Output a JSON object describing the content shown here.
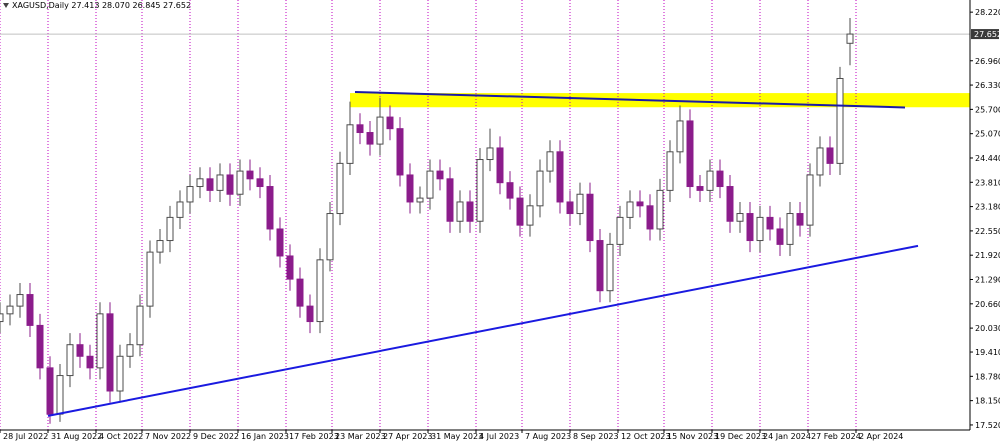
{
  "chart_data": {
    "type": "candlestick",
    "title": "XAGUSD,Daily  27.413 28.070 26.845 27.652",
    "up_color": "#4d4d4d",
    "down_color": "#8b1c8b",
    "grid_color": "#c000c0",
    "xlim": [
      0,
      485
    ],
    "ylim": [
      17.389,
      28.535
    ],
    "xticks": [
      {
        "value": 0,
        "label": "28 Jul 2022"
      },
      {
        "value": 24,
        "label": "31 Aug 2022"
      },
      {
        "value": 48,
        "label": "4 Oct 2022"
      },
      {
        "value": 71,
        "label": "7 Nov 2022"
      },
      {
        "value": 95,
        "label": "9 Dec 2022"
      },
      {
        "value": 119,
        "label": "16 Jan 2023"
      },
      {
        "value": 143,
        "label": "17 Feb 2023"
      },
      {
        "value": 166,
        "label": "23 Mar 2023"
      },
      {
        "value": 190,
        "label": "27 Apr 2023"
      },
      {
        "value": 214,
        "label": "31 May 2023"
      },
      {
        "value": 238,
        "label": "4 Jul 2023"
      },
      {
        "value": 261,
        "label": "7 Aug 2023"
      },
      {
        "value": 285,
        "label": "8 Sep 2023"
      },
      {
        "value": 309,
        "label": "12 Oct 2023"
      },
      {
        "value": 332,
        "label": "15 Nov 2023"
      },
      {
        "value": 356,
        "label": "19 Dec 2023"
      },
      {
        "value": 380,
        "label": "24 Jan 2024"
      },
      {
        "value": 404,
        "label": "27 Feb 2024"
      },
      {
        "value": 428,
        "label": "2 Apr 2024"
      }
    ],
    "yticks": [
      {
        "value": 28.22,
        "label": "28.220"
      },
      {
        "value": 26.96,
        "label": "26.960"
      },
      {
        "value": 26.33,
        "label": "26.330"
      },
      {
        "value": 25.7,
        "label": "25.700"
      },
      {
        "value": 25.07,
        "label": "25.070"
      },
      {
        "value": 24.44,
        "label": "24.440"
      },
      {
        "value": 23.81,
        "label": "23.810"
      },
      {
        "value": 23.18,
        "label": "23.180"
      },
      {
        "value": 22.55,
        "label": "22.550"
      },
      {
        "value": 21.92,
        "label": "21.920"
      },
      {
        "value": 21.29,
        "label": "21.290"
      },
      {
        "value": 20.66,
        "label": "20.660"
      },
      {
        "value": 20.03,
        "label": "20.030"
      },
      {
        "value": 19.41,
        "label": "19.410"
      },
      {
        "value": 18.78,
        "label": "18.780"
      },
      {
        "value": 18.15,
        "label": "18.150"
      },
      {
        "value": 17.52,
        "label": "17.520"
      }
    ],
    "current_price": 27.652,
    "x": [
      0,
      5,
      10,
      15,
      20,
      25,
      30,
      35,
      40,
      45,
      50,
      55,
      60,
      65,
      70,
      75,
      80,
      85,
      90,
      95,
      100,
      105,
      110,
      115,
      120,
      125,
      130,
      135,
      140,
      145,
      150,
      155,
      160,
      165,
      170,
      175,
      180,
      185,
      190,
      195,
      200,
      205,
      210,
      215,
      220,
      225,
      230,
      235,
      240,
      245,
      250,
      255,
      260,
      265,
      270,
      275,
      280,
      285,
      290,
      295,
      300,
      305,
      310,
      315,
      320,
      325,
      330,
      335,
      340,
      345,
      350,
      355,
      360,
      365,
      370,
      375,
      380,
      385,
      390,
      395,
      400,
      405,
      410,
      415,
      420,
      425
    ],
    "open": [
      20.2,
      20.4,
      20.6,
      20.9,
      20.1,
      19.0,
      17.8,
      18.8,
      19.6,
      19.3,
      19.0,
      20.4,
      18.4,
      19.3,
      19.6,
      20.6,
      22.0,
      22.3,
      22.9,
      23.3,
      23.7,
      23.9,
      23.6,
      24.0,
      23.5,
      24.1,
      23.9,
      23.7,
      22.6,
      21.9,
      21.3,
      20.6,
      20.2,
      21.8,
      23.0,
      24.3,
      25.3,
      25.1,
      24.8,
      25.5,
      25.2,
      24.0,
      23.3,
      23.4,
      24.1,
      23.9,
      22.8,
      23.3,
      22.8,
      24.4,
      24.7,
      23.8,
      23.4,
      22.7,
      23.2,
      24.1,
      24.6,
      23.3,
      23.0,
      23.5,
      22.3,
      21.0,
      22.2,
      22.9,
      23.3,
      23.2,
      22.6,
      23.6,
      24.6,
      25.4,
      23.7,
      23.6,
      24.1,
      23.7,
      22.8,
      23.0,
      22.3,
      22.9,
      22.6,
      22.2,
      23.0,
      22.7,
      24.0,
      24.7,
      24.3,
      27.413
    ],
    "high": [
      20.7,
      20.9,
      21.2,
      21.2,
      20.4,
      19.3,
      19.1,
      19.9,
      19.9,
      19.6,
      20.7,
      20.7,
      19.6,
      19.9,
      20.9,
      22.3,
      22.6,
      23.2,
      23.6,
      24.0,
      24.2,
      24.2,
      24.3,
      24.3,
      24.4,
      24.4,
      24.2,
      24.0,
      22.9,
      22.2,
      21.6,
      20.9,
      22.1,
      23.3,
      24.6,
      25.9,
      25.6,
      25.4,
      26.0,
      25.8,
      25.5,
      24.3,
      23.7,
      24.4,
      24.4,
      24.2,
      23.6,
      23.6,
      24.7,
      25.2,
      25.0,
      24.1,
      23.7,
      23.5,
      24.4,
      24.9,
      24.9,
      23.6,
      23.8,
      23.8,
      22.6,
      22.5,
      23.2,
      23.6,
      23.6,
      23.5,
      23.9,
      24.9,
      25.8,
      25.7,
      24.0,
      24.4,
      24.4,
      24.0,
      23.3,
      23.3,
      23.2,
      23.2,
      22.9,
      23.3,
      23.3,
      24.3,
      25.0,
      25.0,
      26.8,
      28.07
    ],
    "low": [
      19.9,
      20.1,
      20.3,
      19.8,
      18.7,
      17.55,
      17.6,
      18.5,
      19.0,
      18.7,
      18.7,
      18.1,
      18.1,
      19.0,
      19.3,
      20.3,
      21.7,
      22.0,
      22.6,
      23.0,
      23.4,
      23.3,
      23.3,
      23.2,
      23.2,
      23.6,
      23.4,
      22.3,
      21.6,
      21.0,
      20.3,
      19.9,
      19.9,
      21.5,
      22.7,
      24.0,
      24.8,
      24.5,
      24.5,
      24.9,
      23.7,
      23.0,
      23.0,
      23.1,
      23.6,
      22.5,
      22.5,
      22.5,
      22.5,
      24.1,
      23.5,
      23.1,
      22.4,
      22.4,
      22.9,
      23.8,
      23.0,
      22.7,
      22.7,
      22.0,
      20.7,
      20.7,
      21.9,
      22.6,
      22.9,
      22.3,
      22.3,
      23.3,
      24.3,
      23.4,
      23.3,
      23.3,
      23.4,
      22.5,
      22.5,
      22.0,
      22.0,
      22.3,
      21.9,
      21.9,
      22.4,
      22.4,
      23.7,
      24.0,
      24.0,
      26.845
    ],
    "close": [
      20.4,
      20.6,
      20.9,
      20.1,
      19.0,
      17.8,
      18.8,
      19.6,
      19.3,
      19.0,
      20.4,
      18.4,
      19.3,
      19.6,
      20.6,
      22.0,
      22.3,
      22.9,
      23.3,
      23.7,
      23.9,
      23.6,
      24.0,
      23.5,
      24.1,
      23.9,
      23.7,
      22.6,
      21.9,
      21.3,
      20.6,
      20.2,
      21.8,
      23.0,
      24.3,
      25.3,
      25.1,
      24.8,
      25.5,
      25.2,
      24.0,
      23.3,
      23.4,
      24.1,
      23.9,
      22.8,
      23.3,
      22.8,
      24.4,
      24.7,
      23.8,
      23.4,
      22.7,
      23.2,
      24.1,
      24.6,
      23.3,
      23.0,
      23.5,
      22.3,
      21.0,
      22.2,
      22.9,
      23.3,
      23.2,
      22.6,
      23.6,
      24.6,
      25.4,
      23.7,
      23.6,
      24.1,
      23.7,
      22.8,
      23.0,
      22.3,
      22.9,
      22.6,
      22.2,
      23.0,
      22.7,
      24.0,
      24.7,
      24.3,
      26.5,
      27.652
    ],
    "zone": {
      "color": "#ffff00",
      "x_start": 175,
      "ylim": [
        25.755,
        26.122
      ]
    },
    "trendlines": [
      {
        "color": "#1a1aa8",
        "x": [
          177.5,
          452.5
        ],
        "y": [
          26.15,
          25.75
        ]
      },
      {
        "color": "#1a1ae0",
        "x": [
          24,
          459
        ],
        "y": [
          17.756,
          22.162
        ]
      }
    ]
  }
}
